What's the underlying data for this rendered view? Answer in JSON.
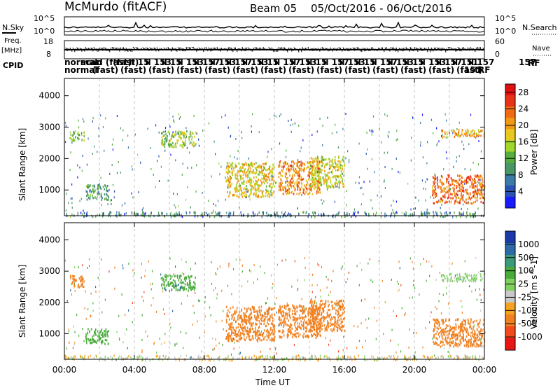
{
  "header": {
    "station": "McMurdo (fitACF)",
    "beam": "Beam 05",
    "date_range": "05/Oct/2016 - 06/Oct/2016"
  },
  "strip_labels": {
    "nsky": "N.Sky",
    "nsky_hi": "10^5",
    "nsky_lo": "10^0",
    "nsearch": "N.Search",
    "nsearch_hi": "10^5",
    "nsearch_lo": "10^0",
    "freq": "Freq.",
    "freq_unit": "[MHz]",
    "freq_hi": "18",
    "freq_lo": "8",
    "nave": "Nave",
    "nave_hi": "60",
    "nave_lo": "0",
    "cpid": "CPID",
    "rf": "RF",
    "cpid_last": "157",
    "rf_last": "151"
  },
  "cpid_row1": [
    "normal",
    "scan",
    "d (fast)",
    "(fast)",
    "il 15",
    "il 153",
    "il 15",
    "il 153",
    "il 157",
    "il 153",
    "il 157",
    "il 153",
    "il 15",
    "il 157",
    "il 153",
    "il 15",
    "il 157",
    "il 153",
    "il 15",
    "il 157",
    "il 153",
    "il 15",
    "il 153",
    "il 157",
    "il 151",
    "il 157"
  ],
  "cpid_row2": [
    "normal",
    "(fast)",
    "(fast)",
    "(fast)",
    "(fast)",
    "(fast)",
    "(fast)",
    "(fast)",
    "(fast)",
    "(fast)",
    "(fast)",
    "(fast)",
    "(fast)",
    "(fast)",
    "(fast)"
  ],
  "colors": {
    "power_scale": [
      "#1a1aff",
      "#2a52b4",
      "#3c7aa8",
      "#4a9664",
      "#57ad3e",
      "#a2d62a",
      "#e8c81e",
      "#f29a16",
      "#f06a12",
      "#e83218",
      "#e01010"
    ],
    "velocity_scale": [
      "#e81515",
      "#f24a1c",
      "#f08020",
      "#f5a220",
      "#c8c8c8",
      "#7fd060",
      "#4aab3c",
      "#3c9a7a",
      "#2e6aa8",
      "#1a3aaa"
    ]
  },
  "chart_data": [
    {
      "type": "heatmap",
      "panel": "power",
      "xlabel": "",
      "ylabel": "Slant Range [km]",
      "x_ticks": [
        "00:00",
        "04:00",
        "08:00",
        "12:00",
        "16:00",
        "20:00",
        "00:00"
      ],
      "xlim_hours": [
        0,
        24
      ],
      "y_ticks": [
        1000,
        2000,
        3000,
        4000
      ],
      "ylim": [
        180,
        4550
      ],
      "colorbar": {
        "label": "Power [dB]",
        "ticks": [
          4,
          8,
          12,
          16,
          20,
          24,
          28
        ],
        "range": [
          0,
          30
        ]
      },
      "regions": [
        {
          "t0": 0.3,
          "t1": 1.1,
          "r0": 2600,
          "r1": 2900,
          "level": 12
        },
        {
          "t0": 1.2,
          "t1": 2.5,
          "r0": 700,
          "r1": 1200,
          "level": 10
        },
        {
          "t0": 5.5,
          "t1": 7.5,
          "r0": 2400,
          "r1": 2900,
          "level": 14
        },
        {
          "t0": 9.2,
          "t1": 12.0,
          "r0": 800,
          "r1": 1900,
          "level": 18
        },
        {
          "t0": 12.2,
          "t1": 14.6,
          "r0": 900,
          "r1": 1950,
          "level": 22
        },
        {
          "t0": 14.0,
          "t1": 16.0,
          "r0": 1100,
          "r1": 2100,
          "level": 17
        },
        {
          "t0": 21.0,
          "t1": 24.0,
          "r0": 600,
          "r1": 1500,
          "level": 24
        },
        {
          "t0": 21.5,
          "t1": 24.0,
          "r0": 2700,
          "r1": 2950,
          "level": 20
        }
      ]
    },
    {
      "type": "heatmap",
      "panel": "velocity",
      "xlabel": "Time UT",
      "ylabel": "Slant Range [km]",
      "x_ticks": [
        "00:00",
        "04:00",
        "08:00",
        "12:00",
        "16:00",
        "20:00",
        "00:00"
      ],
      "xlim_hours": [
        0,
        24
      ],
      "y_ticks": [
        1000,
        2000,
        3000,
        4000
      ],
      "ylim": [
        180,
        4550
      ],
      "colorbar": {
        "label": "Velocity [m s^-1]",
        "ticks": [
          "1000",
          "500",
          "100",
          "25",
          "-25",
          "-100",
          "-500",
          "-1000"
        ]
      },
      "regions": [
        {
          "t0": 0.3,
          "t1": 1.1,
          "r0": 2500,
          "r1": 2900,
          "velocity": -300
        },
        {
          "t0": 1.2,
          "t1": 2.5,
          "r0": 700,
          "r1": 1200,
          "velocity": 300
        },
        {
          "t0": 5.5,
          "t1": 7.5,
          "r0": 2400,
          "r1": 2900,
          "velocity": 400
        },
        {
          "t0": 9.2,
          "t1": 12.0,
          "r0": 800,
          "r1": 1900,
          "velocity": -200
        },
        {
          "t0": 12.2,
          "t1": 14.6,
          "r0": 900,
          "r1": 1950,
          "velocity": -250
        },
        {
          "t0": 14.0,
          "t1": 16.0,
          "r0": 1100,
          "r1": 2100,
          "velocity": -220
        },
        {
          "t0": 21.0,
          "t1": 24.0,
          "r0": 600,
          "r1": 1500,
          "velocity": -230
        },
        {
          "t0": 21.5,
          "t1": 24.0,
          "r0": 2700,
          "r1": 2950,
          "velocity": 30
        }
      ]
    }
  ]
}
